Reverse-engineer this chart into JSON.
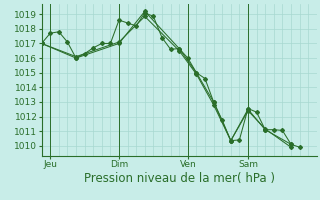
{
  "background_color": "#c8ede8",
  "grid_color": "#a8d8d0",
  "line_color": "#2a6e2a",
  "marker_color": "#2a6e2a",
  "ylabel_ticks": [
    1010,
    1011,
    1012,
    1013,
    1014,
    1015,
    1016,
    1017,
    1018,
    1019
  ],
  "ylim": [
    1009.3,
    1019.7
  ],
  "xlim": [
    0,
    32
  ],
  "xlabel": "Pression niveau de la mer( hPa )",
  "xlabel_fontsize": 8.5,
  "tick_fontsize": 6.5,
  "day_labels": [
    "Jeu",
    "Dim",
    "Ven",
    "Sam"
  ],
  "day_positions": [
    1,
    9,
    17,
    24
  ],
  "vline_positions": [
    1,
    9,
    17,
    24
  ],
  "series1": [
    [
      0,
      1017.0
    ],
    [
      1,
      1017.7
    ],
    [
      2,
      1017.8
    ],
    [
      3,
      1017.1
    ],
    [
      4,
      1016.0
    ],
    [
      5,
      1016.3
    ],
    [
      6,
      1016.7
    ],
    [
      7,
      1017.0
    ],
    [
      8,
      1017.0
    ],
    [
      9,
      1018.6
    ],
    [
      10,
      1018.4
    ],
    [
      11,
      1018.2
    ],
    [
      12,
      1019.1
    ],
    [
      13,
      1018.85
    ],
    [
      14,
      1017.4
    ],
    [
      15,
      1016.6
    ],
    [
      16,
      1016.65
    ],
    [
      17,
      1016.0
    ],
    [
      18,
      1015.0
    ],
    [
      19,
      1014.6
    ],
    [
      20,
      1013.0
    ],
    [
      21,
      1011.75
    ],
    [
      22,
      1010.35
    ],
    [
      23,
      1010.4
    ],
    [
      24,
      1012.55
    ],
    [
      25,
      1012.3
    ],
    [
      26,
      1011.1
    ],
    [
      27,
      1011.1
    ],
    [
      28,
      1011.05
    ],
    [
      29,
      1010.1
    ],
    [
      30,
      1009.9
    ]
  ],
  "series2": [
    [
      0,
      1017.0
    ],
    [
      4,
      1016.0
    ],
    [
      9,
      1017.0
    ],
    [
      12,
      1019.2
    ],
    [
      16,
      1016.65
    ],
    [
      18,
      1015.0
    ],
    [
      20,
      1013.0
    ],
    [
      22,
      1010.35
    ],
    [
      24,
      1012.5
    ],
    [
      26,
      1011.1
    ],
    [
      29,
      1010.1
    ]
  ],
  "series3": [
    [
      0,
      1017.0
    ],
    [
      4,
      1016.1
    ],
    [
      9,
      1017.1
    ],
    [
      12,
      1018.85
    ],
    [
      16,
      1016.5
    ],
    [
      18,
      1014.9
    ],
    [
      20,
      1012.8
    ],
    [
      22,
      1010.35
    ],
    [
      24,
      1012.4
    ],
    [
      26,
      1011.15
    ],
    [
      29,
      1009.9
    ]
  ]
}
